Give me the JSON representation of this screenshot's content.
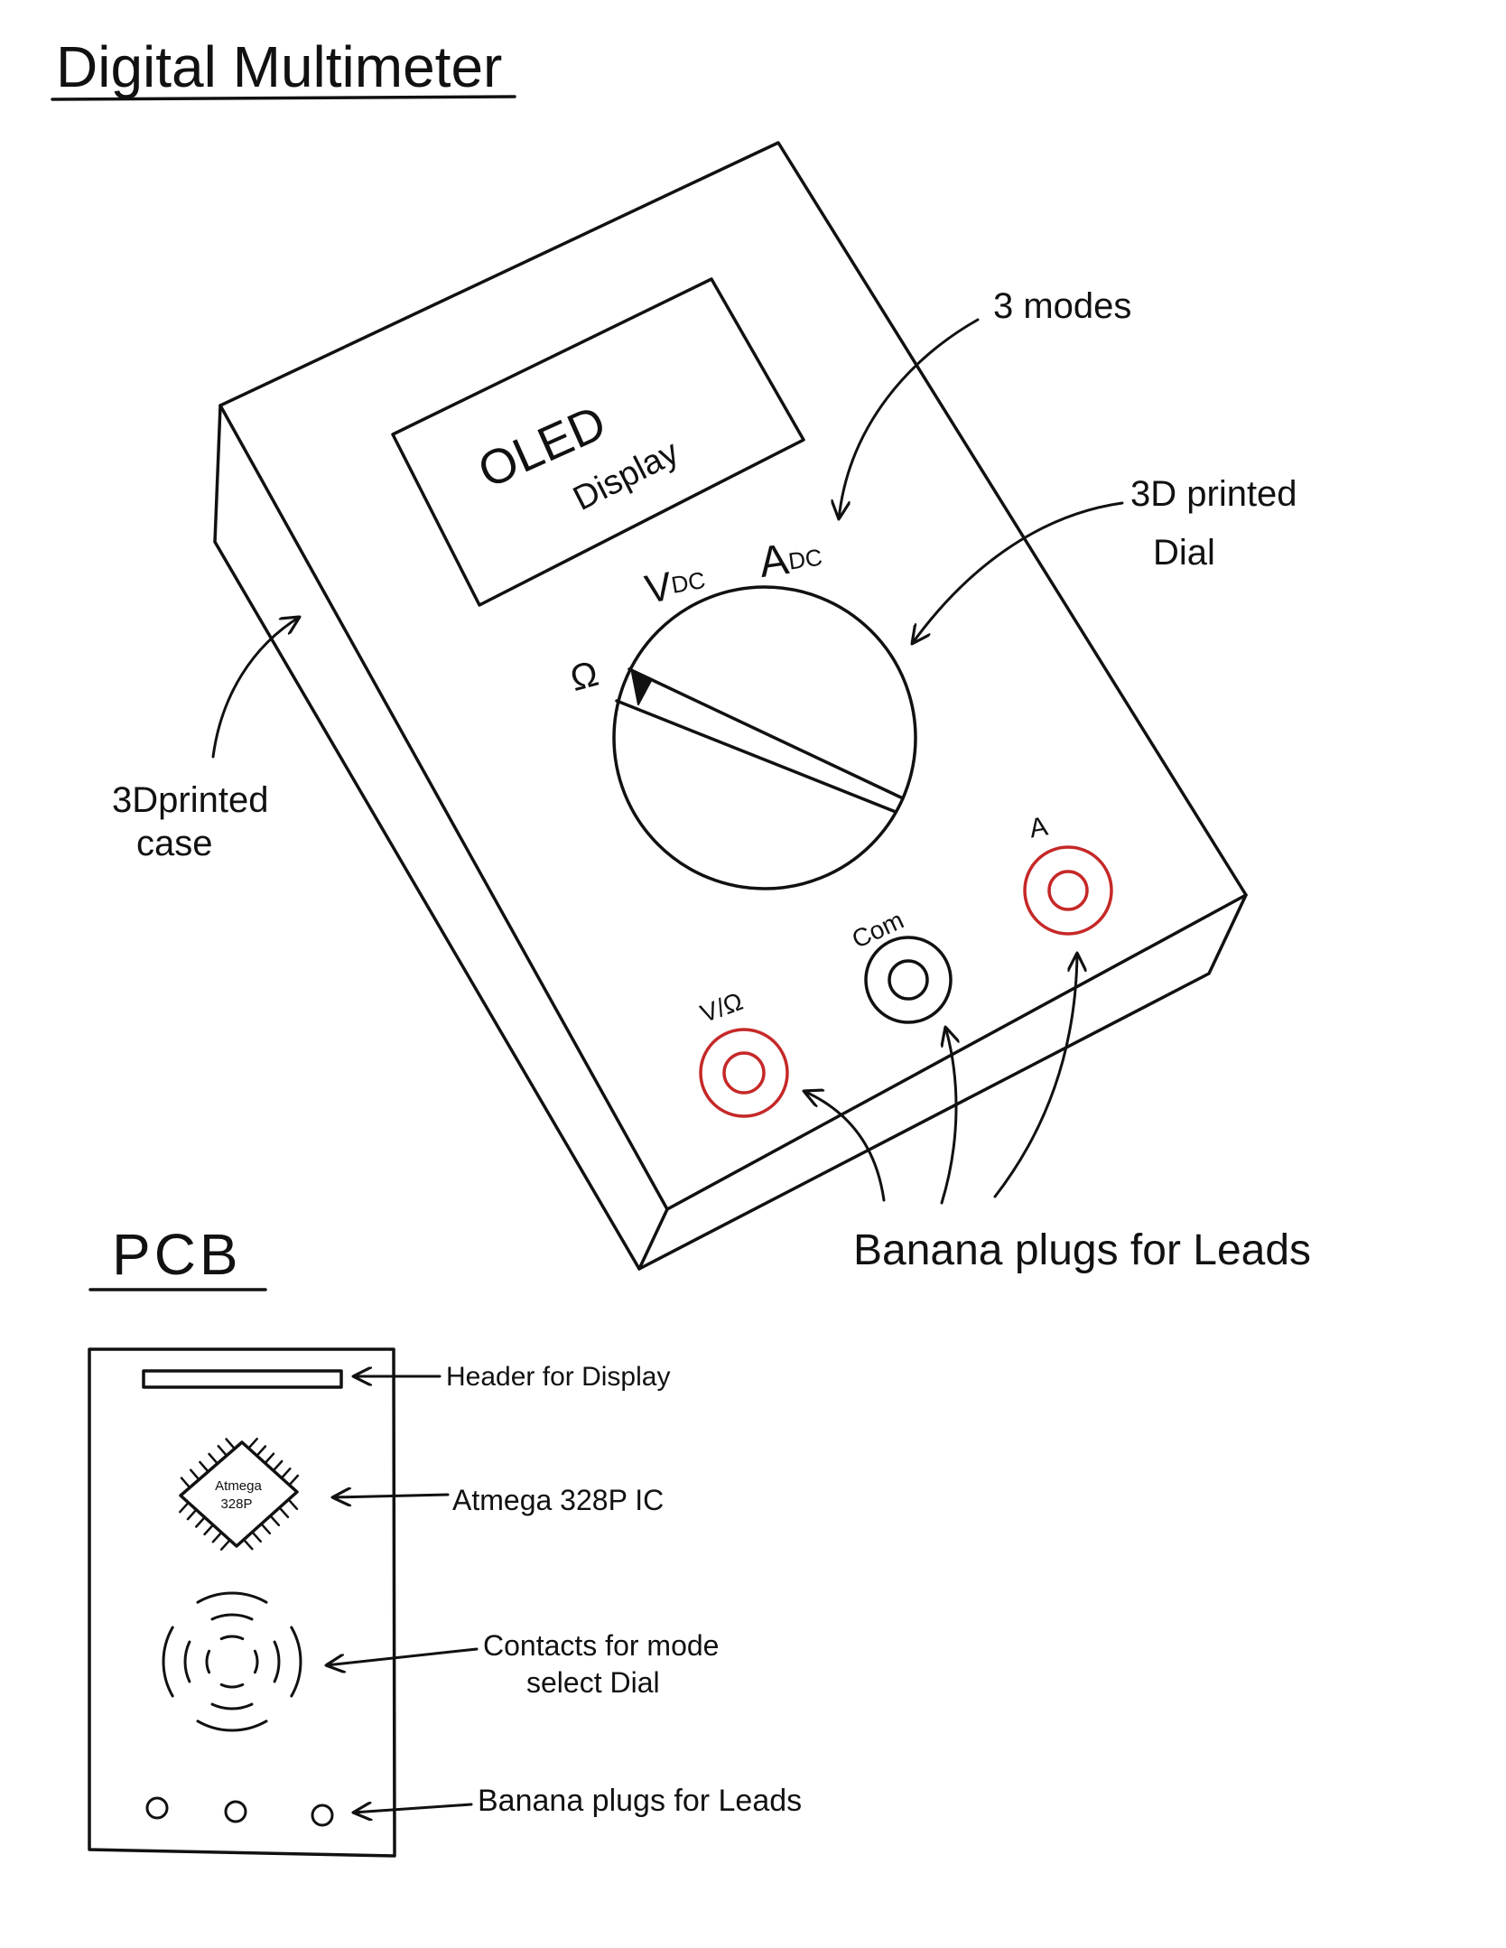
{
  "title": "Digital Multimeter",
  "device": {
    "display": {
      "line1": "OLED",
      "line2": "Display"
    },
    "dial": {
      "ohm": "Ω",
      "vdc": {
        "main": "V",
        "sub": "DC"
      },
      "adc": {
        "main": "A",
        "sub": "DC"
      }
    },
    "jacks": [
      {
        "label": "V/Ω",
        "color": "#c62828"
      },
      {
        "label": "Com",
        "color": "#111111"
      },
      {
        "label": "A",
        "color": "#c62828"
      }
    ]
  },
  "annotations": {
    "modes": "3 modes",
    "dial": {
      "line1": "3D printed",
      "line2": "Dial"
    },
    "case": {
      "line1": "3Dprinted",
      "line2": "case"
    },
    "banana": "Banana plugs for Leads"
  },
  "pcb": {
    "title": "PCB",
    "chip": {
      "line1": "Atmega",
      "line2": "328P"
    },
    "labels": {
      "header": "Header for Display",
      "ic": "Atmega 328P IC",
      "contacts": {
        "line1": "Contacts for mode",
        "line2": "select Dial"
      },
      "banana": "Banana plugs for Leads"
    }
  },
  "colors": {
    "ink": "#111111",
    "jack_red": "#c62828"
  }
}
